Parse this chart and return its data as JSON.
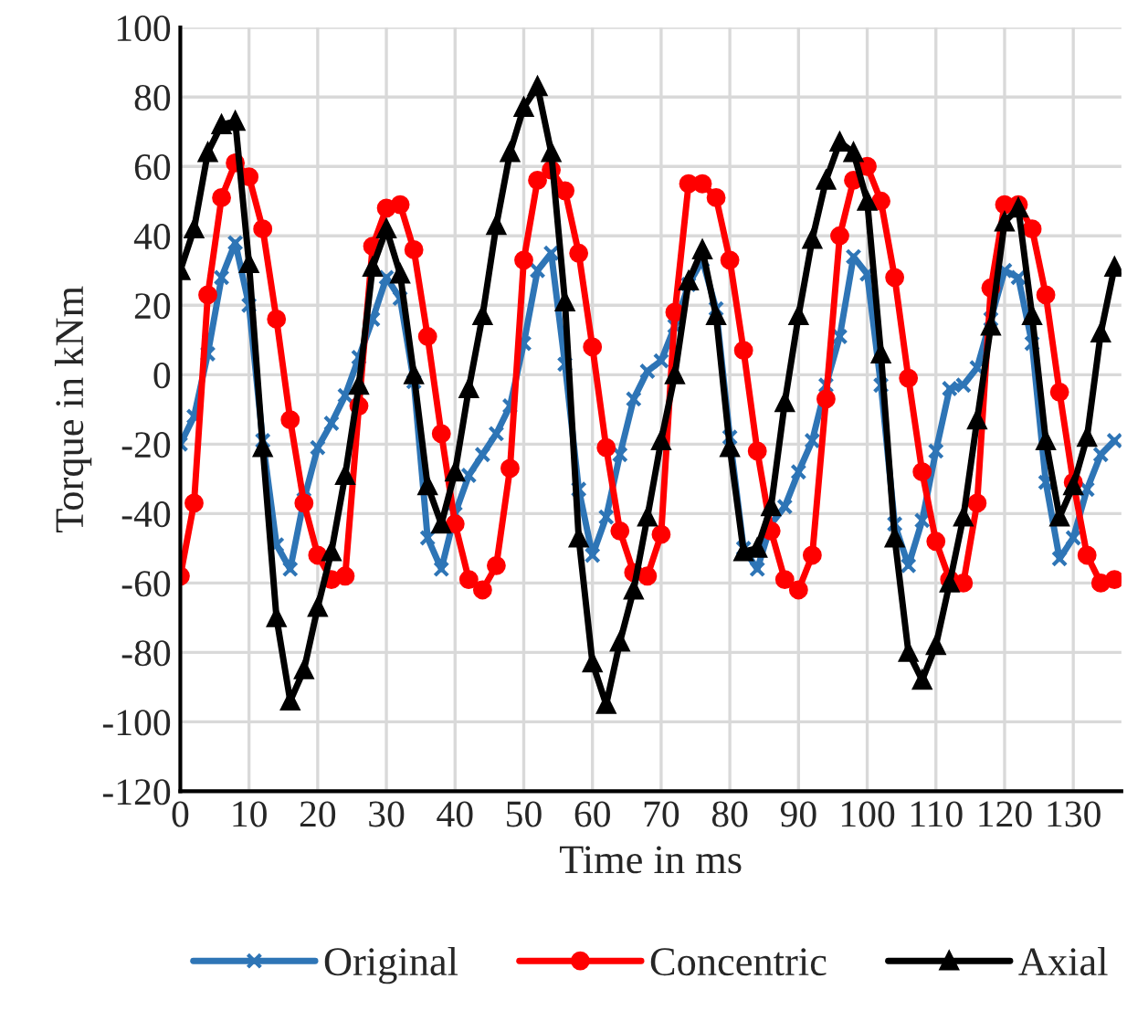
{
  "chart_data": {
    "type": "line",
    "xlabel": "Time in ms",
    "ylabel": "Torque in kNm",
    "x": [
      0,
      2,
      4,
      6,
      8,
      10,
      12,
      14,
      16,
      18,
      20,
      22,
      24,
      26,
      28,
      30,
      32,
      34,
      36,
      38,
      40,
      42,
      44,
      46,
      48,
      50,
      52,
      54,
      56,
      58,
      60,
      62,
      64,
      66,
      68,
      70,
      72,
      74,
      76,
      78,
      80,
      82,
      84,
      86,
      88,
      90,
      92,
      94,
      96,
      98,
      100,
      102,
      104,
      106,
      108,
      110,
      112,
      114,
      116,
      118,
      120,
      122,
      124,
      126,
      128,
      130,
      132,
      134,
      136
    ],
    "series": [
      {
        "name": "Original",
        "color": "#2e75b6",
        "marker": "cross",
        "values": [
          -20,
          -12,
          6,
          28,
          38,
          20,
          -19,
          -49,
          -56,
          -36,
          -21,
          -14,
          -6,
          5,
          16,
          28,
          22,
          -2,
          -47,
          -56,
          -40,
          -29,
          -23,
          -17,
          -9,
          9,
          30,
          35,
          3,
          -33,
          -52,
          -41,
          -23,
          -7,
          1,
          4,
          14,
          26,
          33,
          19,
          -18,
          -50,
          -56,
          -43,
          -38,
          -28,
          -19,
          -3,
          11,
          34,
          29,
          -3,
          -43,
          -55,
          -42,
          -22,
          -4,
          -3,
          2,
          16,
          30,
          28,
          9,
          -31,
          -53,
          -47,
          -33,
          -23,
          -19
        ]
      },
      {
        "name": "Concentric",
        "color": "#ff0000",
        "marker": "circle",
        "values": [
          -58,
          -37,
          23,
          51,
          61,
          57,
          42,
          16,
          -13,
          -37,
          -52,
          -59,
          -58,
          -9,
          37,
          48,
          49,
          36,
          11,
          -17,
          -43,
          -59,
          -62,
          -55,
          -27,
          33,
          56,
          59,
          53,
          35,
          8,
          -21,
          -45,
          -57,
          -58,
          -46,
          18,
          55,
          55,
          51,
          33,
          7,
          -22,
          -45,
          -59,
          -62,
          -52,
          -7,
          40,
          56,
          60,
          50,
          28,
          -1,
          -28,
          -48,
          -59,
          -60,
          -37,
          25,
          49,
          49,
          42,
          23,
          -5,
          -31,
          -52,
          -60,
          -59
        ]
      },
      {
        "name": "Axial",
        "color": "#000000",
        "marker": "triangle",
        "values": [
          30,
          42,
          64,
          72,
          73,
          32,
          -21,
          -70,
          -94,
          -85,
          -67,
          -51,
          -29,
          -3,
          31,
          42,
          29,
          0,
          -32,
          -43,
          -28,
          -4,
          17,
          43,
          64,
          77,
          83,
          64,
          21,
          -47,
          -83,
          -95,
          -77,
          -62,
          -41,
          -19,
          0,
          27,
          36,
          17,
          -21,
          -51,
          -50,
          -38,
          -8,
          17,
          39,
          56,
          67,
          64,
          50,
          6,
          -47,
          -80,
          -88,
          -78,
          -60,
          -41,
          -13,
          14,
          44,
          48,
          17,
          -19,
          -41,
          -32,
          -18,
          12,
          31
        ]
      }
    ],
    "xlim": [
      0,
      137
    ],
    "xticks": [
      0,
      10,
      20,
      30,
      40,
      50,
      60,
      70,
      80,
      90,
      100,
      110,
      120,
      130
    ],
    "ylim": [
      -120,
      100
    ],
    "yticks": [
      -120,
      -100,
      -80,
      -60,
      -40,
      -20,
      0,
      20,
      40,
      60,
      80,
      100
    ],
    "grid": true,
    "legend": "bottom",
    "line_style": "solid"
  }
}
